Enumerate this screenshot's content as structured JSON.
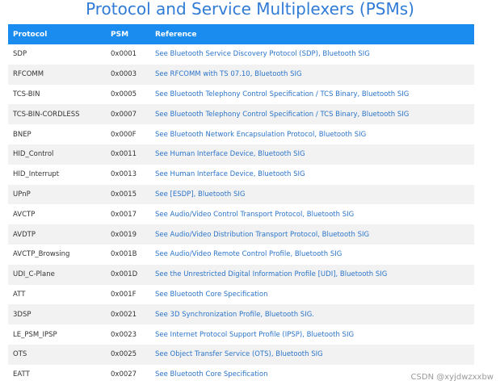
{
  "title": "Protocol and Service Multiplexers (PSMs)",
  "table": {
    "headers": [
      "Protocol",
      "PSM",
      "Reference"
    ],
    "rows": [
      {
        "protocol": "SDP",
        "psm": "0x0001",
        "reference": "See Bluetooth Service Discovery Protocol (SDP), Bluetooth SIG"
      },
      {
        "protocol": "RFCOMM",
        "psm": "0x0003",
        "reference": "See RFCOMM with TS 07.10, Bluetooth SIG"
      },
      {
        "protocol": "TCS-BIN",
        "psm": "0x0005",
        "reference": "See Bluetooth Telephony Control Specification / TCS Binary, Bluetooth SIG"
      },
      {
        "protocol": "TCS-BIN-CORDLESS",
        "psm": "0x0007",
        "reference": "See Bluetooth Telephony Control Specification / TCS Binary, Bluetooth SIG"
      },
      {
        "protocol": "BNEP",
        "psm": "0x000F",
        "reference": "See Bluetooth Network Encapsulation Protocol, Bluetooth SIG"
      },
      {
        "protocol": "HID_Control",
        "psm": "0x0011",
        "reference": "See Human Interface Device, Bluetooth SIG"
      },
      {
        "protocol": "HID_Interrupt",
        "psm": "0x0013",
        "reference": "See Human Interface Device, Bluetooth SIG"
      },
      {
        "protocol": "UPnP",
        "psm": "0x0015",
        "reference": "See [ESDP], Bluetooth SIG"
      },
      {
        "protocol": "AVCTP",
        "psm": "0x0017",
        "reference": "See Audio/Video Control Transport Protocol, Bluetooth SIG"
      },
      {
        "protocol": "AVDTP",
        "psm": "0x0019",
        "reference": "See Audio/Video Distribution Transport Protocol, Bluetooth SIG"
      },
      {
        "protocol": "AVCTP_Browsing",
        "psm": "0x001B",
        "reference": "See Audio/Video Remote Control Profile, Bluetooth SIG"
      },
      {
        "protocol": "UDI_C-Plane",
        "psm": "0x001D",
        "reference": "See the Unrestricted Digital Information Profile [UDI], Bluetooth SIG"
      },
      {
        "protocol": "ATT",
        "psm": "0x001F",
        "reference": "See Bluetooth Core Specification"
      },
      {
        "protocol": "3DSP",
        "psm": "0x0021",
        "reference": "See 3D Synchronization Profile, Bluetooth SIG."
      },
      {
        "protocol": "LE_PSM_IPSP",
        "psm": "0x0023",
        "reference": "See Internet Protocol Support Profile (IPSP), Bluetooth SIG"
      },
      {
        "protocol": "OTS",
        "psm": "0x0025",
        "reference": "See Object Transfer Service (OTS), Bluetooth SIG"
      },
      {
        "protocol": "EATT",
        "psm": "0x0027",
        "reference": "See Bluetooth Core Specification"
      }
    ]
  },
  "watermark": "CSDN @xyjdwzxxbw",
  "colors": {
    "title": "#2f7bd6",
    "header_bg": "#1a8cf0",
    "link": "#2b74c9",
    "row_alt": "#f2f2f2"
  }
}
